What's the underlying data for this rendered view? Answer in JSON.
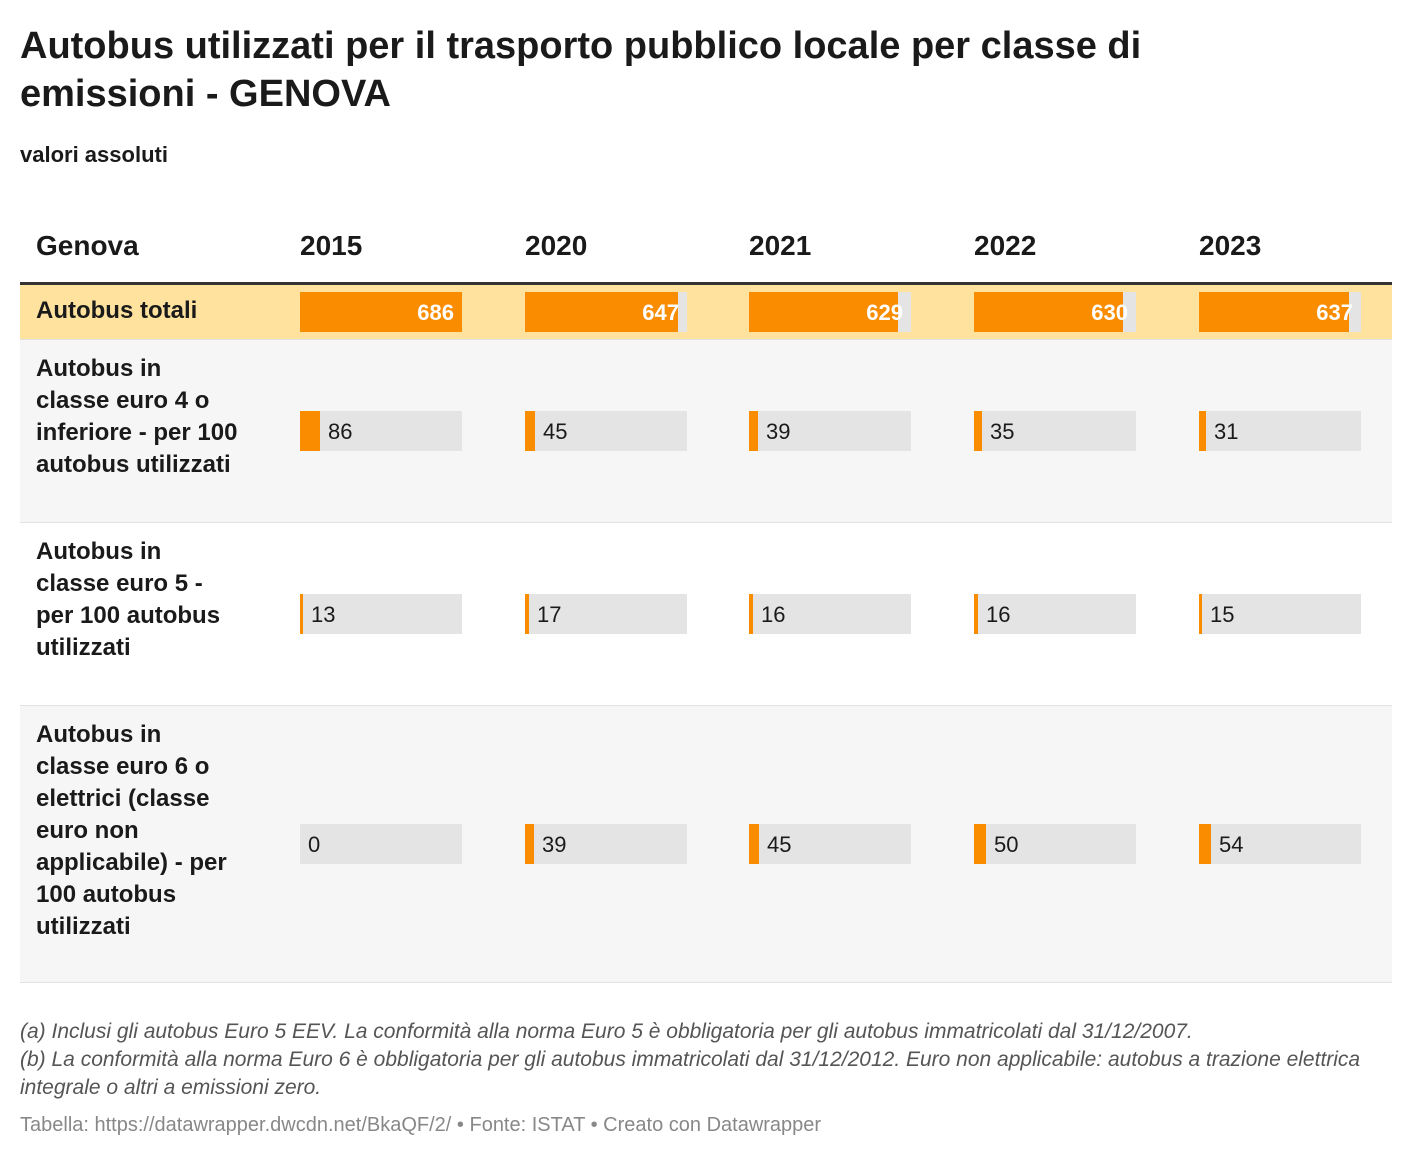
{
  "title": "Autobus utilizzati per il trasporto pubblico locale per classe di emissioni - GENOVA",
  "subtitle": "valori assoluti",
  "header": {
    "label": "Genova",
    "years": [
      "2015",
      "2020",
      "2021",
      "2022",
      "2023"
    ]
  },
  "notes": [
    "(a) Inclusi gli autobus Euro 5 EEV. La conformità alla norma Euro 5 è obbligatoria per gli autobus immatricolati dal 31/12/2007.",
    "(b) La conformità alla norma Euro 6 è obbligatoria per gli autobus immatricolati dal 31/12/2012. Euro non applicabile: autobus a trazione elettrica integrale o altri a emissioni zero."
  ],
  "footer": "Tabella: https://datawrapper.dwcdn.net/BkaQF/2/ • Fonte: ISTAT • Creato con Datawrapper",
  "colors": {
    "bar": "#fa8c00",
    "highlight_row": "#fee29e",
    "track": "#e4e4e4"
  },
  "chart_data": {
    "type": "table",
    "columns": [
      "2015",
      "2020",
      "2021",
      "2022",
      "2023"
    ],
    "rows": [
      {
        "label": "Autobus totali",
        "values": [
          686,
          647,
          629,
          630,
          637
        ],
        "max": 686,
        "highlight": true
      },
      {
        "label": "Autobus in classe euro 4 o inferiore - per 100 autobus utilizzati",
        "values": [
          86,
          45,
          39,
          35,
          31
        ],
        "max": 700
      },
      {
        "label": "Autobus in classe euro 5 - per 100 autobus utilizzati",
        "values": [
          13,
          17,
          16,
          16,
          15
        ],
        "max": 700
      },
      {
        "label": "Autobus in classe euro 6 o elettrici (classe euro non applicabile) - per 100 autobus utilizzati",
        "values": [
          0,
          39,
          45,
          50,
          54
        ],
        "max": 700
      }
    ]
  }
}
